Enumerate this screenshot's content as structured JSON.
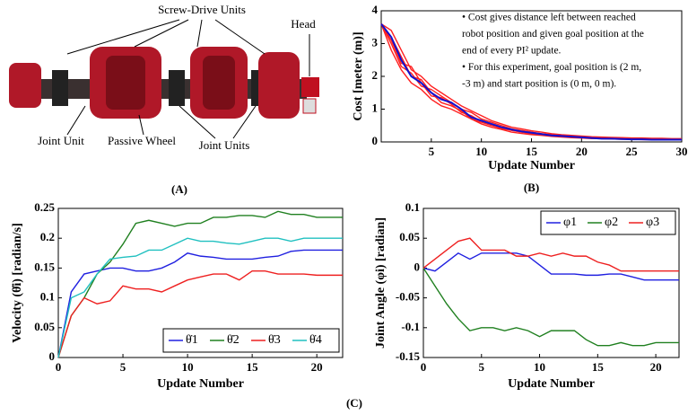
{
  "panel_a": {
    "labels": [
      "Screw-Drive Units",
      "Head",
      "Joint Unit",
      "Passive Wheel",
      "Joint Units"
    ],
    "panel_label": "(A)"
  },
  "panel_c_label": "(C)",
  "chart_data": [
    {
      "type": "line",
      "panel_label": "(B)",
      "xlabel": "Update  Number",
      "ylabel": "Cost [meter (m)]",
      "annotation": [
        "• Cost gives distance left between reached",
        "robot position and given goal position at the",
        "end of every PI² update.",
        "• For this experiment, goal position is (2 m,",
        "-3 m) and start position is (0 m, 0 m)."
      ],
      "x": [
        0,
        1,
        2,
        3,
        4,
        5,
        6,
        7,
        8,
        9,
        10,
        11,
        12,
        13,
        14,
        15,
        16,
        17,
        18,
        19,
        20,
        21,
        22,
        23,
        24,
        25,
        26,
        27,
        28,
        29,
        30
      ],
      "xlim": [
        0,
        30
      ],
      "xticks": [
        5,
        10,
        15,
        20,
        25,
        30
      ],
      "ylim": [
        0,
        4
      ],
      "yticks": [
        0,
        1,
        2,
        3,
        4
      ],
      "series": [
        {
          "color": "#ff2020",
          "values": [
            3.6,
            3.0,
            2.3,
            2.1,
            1.7,
            1.6,
            1.4,
            1.2,
            1.0,
            0.9,
            0.7,
            0.6,
            0.5,
            0.4,
            0.35,
            0.3,
            0.25,
            0.22,
            0.2,
            0.17,
            0.15,
            0.13,
            0.12,
            0.11,
            0.1,
            0.1,
            0.09,
            0.09,
            0.08,
            0.08,
            0.08
          ]
        },
        {
          "color": "#ff2020",
          "values": [
            3.6,
            3.4,
            2.8,
            2.2,
            2.0,
            1.7,
            1.5,
            1.3,
            1.1,
            0.95,
            0.8,
            0.65,
            0.55,
            0.45,
            0.4,
            0.34,
            0.3,
            0.25,
            0.22,
            0.2,
            0.18,
            0.16,
            0.15,
            0.14,
            0.13,
            0.12,
            0.12,
            0.11,
            0.11,
            0.1,
            0.1
          ]
        },
        {
          "color": "#ff2020",
          "values": [
            3.6,
            2.8,
            2.2,
            1.8,
            1.6,
            1.3,
            1.1,
            1.0,
            0.85,
            0.7,
            0.55,
            0.45,
            0.38,
            0.3,
            0.26,
            0.22,
            0.2,
            0.17,
            0.15,
            0.13,
            0.12,
            0.1,
            0.1,
            0.09,
            0.08,
            0.08,
            0.07,
            0.07,
            0.06,
            0.06,
            0.06
          ]
        },
        {
          "color": "#ff2020",
          "values": [
            3.6,
            3.2,
            2.6,
            2.0,
            1.9,
            1.5,
            1.2,
            1.1,
            0.95,
            0.7,
            0.6,
            0.5,
            0.42,
            0.35,
            0.3,
            0.27,
            0.23,
            0.2,
            0.18,
            0.15,
            0.13,
            0.12,
            0.11,
            0.1,
            0.1,
            0.09,
            0.09,
            0.08,
            0.08,
            0.08,
            0.07
          ]
        },
        {
          "color": "#ff2020",
          "values": [
            3.6,
            3.1,
            2.4,
            2.3,
            1.8,
            1.4,
            1.35,
            1.15,
            0.9,
            0.8,
            0.62,
            0.52,
            0.4,
            0.36,
            0.3,
            0.25,
            0.22,
            0.19,
            0.16,
            0.15,
            0.14,
            0.12,
            0.11,
            0.1,
            0.1,
            0.09,
            0.08,
            0.08,
            0.07,
            0.07,
            0.07
          ]
        },
        {
          "color": "#1010d0",
          "values": [
            3.6,
            3.2,
            2.5,
            2.0,
            1.8,
            1.5,
            1.3,
            1.2,
            1.0,
            0.75,
            0.65,
            0.55,
            0.45,
            0.38,
            0.32,
            0.28,
            0.24,
            0.2,
            0.18,
            0.16,
            0.14,
            0.12,
            0.1,
            0.1,
            0.09,
            0.08,
            0.08,
            0.07,
            0.07,
            0.07,
            0.07
          ]
        }
      ]
    },
    {
      "type": "line",
      "xlabel": "Update  Number",
      "ylabel": "Velocity (θ̇i) [radian/s]",
      "legend": "lower right",
      "x": [
        0,
        1,
        2,
        3,
        4,
        5,
        6,
        7,
        8,
        9,
        10,
        11,
        12,
        13,
        14,
        15,
        16,
        17,
        18,
        19,
        20,
        21,
        22
      ],
      "xlim": [
        0,
        22
      ],
      "xticks": [
        0,
        5,
        10,
        15,
        20
      ],
      "ylim": [
        0,
        0.25
      ],
      "yticks": [
        0,
        0.05,
        0.1,
        0.15,
        0.2,
        0.25
      ],
      "series": [
        {
          "name": "θ̇1",
          "color": "#2020e0",
          "values": [
            0,
            0.11,
            0.14,
            0.145,
            0.15,
            0.15,
            0.145,
            0.145,
            0.15,
            0.16,
            0.175,
            0.17,
            0.168,
            0.165,
            0.165,
            0.165,
            0.168,
            0.17,
            0.178,
            0.18,
            0.18,
            0.18,
            0.18
          ]
        },
        {
          "name": "θ̇2",
          "color": "#208020",
          "values": [
            0,
            0.07,
            0.1,
            0.14,
            0.16,
            0.19,
            0.225,
            0.23,
            0.225,
            0.22,
            0.225,
            0.225,
            0.235,
            0.235,
            0.238,
            0.238,
            0.235,
            0.245,
            0.24,
            0.24,
            0.235,
            0.235,
            0.235
          ]
        },
        {
          "name": "θ̇3",
          "color": "#ee2020",
          "values": [
            0,
            0.07,
            0.1,
            0.09,
            0.095,
            0.12,
            0.115,
            0.115,
            0.11,
            0.12,
            0.13,
            0.135,
            0.14,
            0.14,
            0.13,
            0.145,
            0.145,
            0.14,
            0.14,
            0.14,
            0.138,
            0.138,
            0.138
          ]
        },
        {
          "name": "θ̇4",
          "color": "#20c0c0",
          "values": [
            0,
            0.1,
            0.11,
            0.14,
            0.165,
            0.168,
            0.17,
            0.18,
            0.18,
            0.19,
            0.2,
            0.195,
            0.195,
            0.192,
            0.19,
            0.195,
            0.2,
            0.2,
            0.195,
            0.2,
            0.2,
            0.2,
            0.2
          ]
        }
      ]
    },
    {
      "type": "line",
      "xlabel": "Update  Number",
      "ylabel": "Joint Angle (φi) [radian]",
      "legend": "upper right",
      "x": [
        0,
        1,
        2,
        3,
        4,
        5,
        6,
        7,
        8,
        9,
        10,
        11,
        12,
        13,
        14,
        15,
        16,
        17,
        18,
        19,
        20,
        21,
        22
      ],
      "xlim": [
        0,
        22
      ],
      "xticks": [
        0,
        5,
        10,
        15,
        20
      ],
      "ylim": [
        -0.15,
        0.1
      ],
      "yticks": [
        -0.15,
        -0.1,
        -0.05,
        0,
        0.05,
        0.1
      ],
      "series": [
        {
          "name": "φ1",
          "color": "#2020e0",
          "values": [
            0,
            -0.005,
            0.01,
            0.025,
            0.015,
            0.025,
            0.025,
            0.025,
            0.025,
            0.02,
            0.005,
            -0.01,
            -0.01,
            -0.01,
            -0.012,
            -0.012,
            -0.01,
            -0.01,
            -0.015,
            -0.02,
            -0.02,
            -0.02,
            -0.02
          ]
        },
        {
          "name": "φ2",
          "color": "#208020",
          "values": [
            0,
            -0.03,
            -0.06,
            -0.085,
            -0.105,
            -0.1,
            -0.1,
            -0.105,
            -0.1,
            -0.105,
            -0.115,
            -0.105,
            -0.105,
            -0.105,
            -0.12,
            -0.13,
            -0.13,
            -0.125,
            -0.13,
            -0.13,
            -0.125,
            -0.125,
            -0.125
          ]
        },
        {
          "name": "φ3",
          "color": "#ee2020",
          "values": [
            0,
            0.015,
            0.03,
            0.045,
            0.05,
            0.03,
            0.03,
            0.03,
            0.02,
            0.02,
            0.025,
            0.02,
            0.025,
            0.02,
            0.02,
            0.01,
            0.005,
            -0.005,
            -0.005,
            -0.005,
            -0.005,
            -0.005,
            -0.005
          ]
        }
      ]
    }
  ]
}
